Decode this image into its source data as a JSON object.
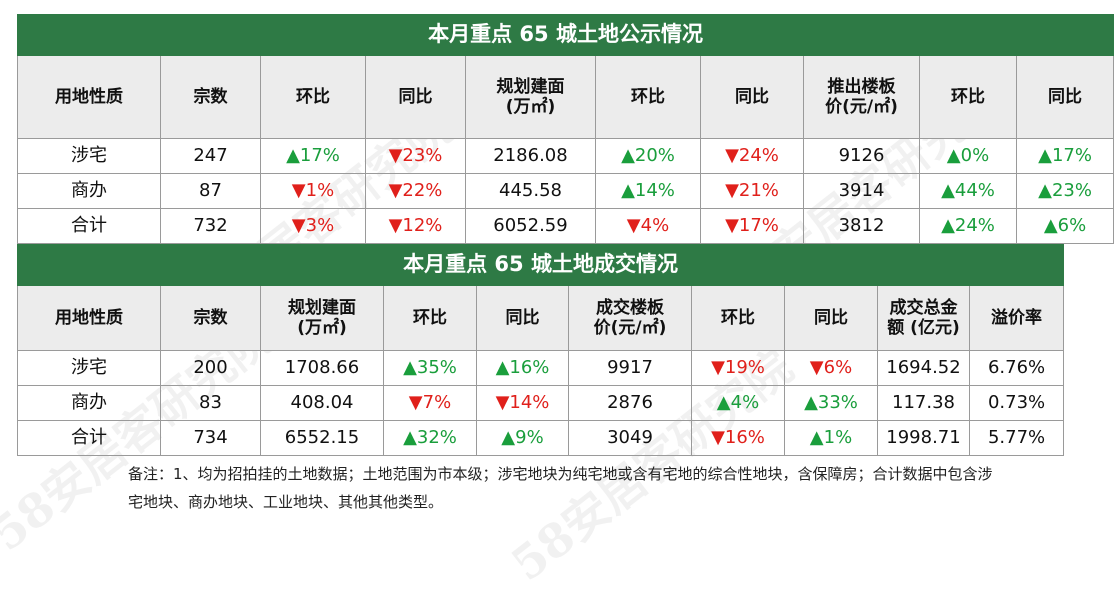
{
  "watermark": "58安居客研究院",
  "table1": {
    "title": "本月重点 65 城土地公示情况",
    "headers": [
      [
        "用地性质"
      ],
      [
        "宗数"
      ],
      [
        "环比"
      ],
      [
        "同比"
      ],
      [
        "规划建面",
        "(万㎡)"
      ],
      [
        "环比"
      ],
      [
        "同比"
      ],
      [
        "推出楼板",
        "价(元/㎡)"
      ],
      [
        "环比"
      ],
      [
        "同比"
      ]
    ],
    "rows": [
      {
        "type": "涉宅",
        "count": "247",
        "count_mom": "▲17%",
        "count_yoy": "▼23%",
        "area": "2186.08",
        "area_mom": "▲20%",
        "area_yoy": "▼24%",
        "price": "9126",
        "price_mom": "▲0%",
        "price_yoy": "▲17%"
      },
      {
        "type": "商办",
        "count": "87",
        "count_mom": "▼1%",
        "count_yoy": "▼22%",
        "area": "445.58",
        "area_mom": "▲14%",
        "area_yoy": "▼21%",
        "price": "3914",
        "price_mom": "▲44%",
        "price_yoy": "▲23%"
      },
      {
        "type": "合计",
        "count": "732",
        "count_mom": "▼3%",
        "count_yoy": "▼12%",
        "area": "6052.59",
        "area_mom": "▼4%",
        "area_yoy": "▼17%",
        "price": "3812",
        "price_mom": "▲24%",
        "price_yoy": "▲6%"
      }
    ]
  },
  "table2": {
    "title": "本月重点 65 城土地成交情况",
    "headers": [
      [
        "用地性质"
      ],
      [
        "宗数"
      ],
      [
        "规划建面",
        "(万㎡)"
      ],
      [
        "环比"
      ],
      [
        "同比"
      ],
      [
        "成交楼板",
        "价(元/㎡)"
      ],
      [
        "环比"
      ],
      [
        "同比"
      ],
      [
        "成交总金",
        "额 (亿元)"
      ],
      [
        "溢价率"
      ]
    ],
    "rows": [
      {
        "type": "涉宅",
        "count": "200",
        "area": "1708.66",
        "area_mom": "▲35%",
        "area_yoy": "▲16%",
        "price": "9917",
        "price_mom": "▼19%",
        "price_yoy": "▼6%",
        "amount": "1694.52",
        "premium": "6.76%"
      },
      {
        "type": "商办",
        "count": "83",
        "area": "408.04",
        "area_mom": "▼7%",
        "area_yoy": "▼14%",
        "price": "2876",
        "price_mom": "▲4%",
        "price_yoy": "▲33%",
        "amount": "117.38",
        "premium": "0.73%"
      },
      {
        "type": "合计",
        "count": "734",
        "area": "6552.15",
        "area_mom": "▲32%",
        "area_yoy": "▲9%",
        "price": "3049",
        "price_mom": "▼16%",
        "price_yoy": "▲1%",
        "amount": "1998.71",
        "premium": "5.77%"
      }
    ]
  },
  "note": "备注：1、均为招拍挂的土地数据；土地范围为市本级；涉宅地块为纯宅地或含有宅地的综合性地块，含保障房；合计数据中包含涉宅地块、商办地块、工业地块、其他其他类型。",
  "colors": {
    "title_bg": "#2e7a45",
    "header_bg": "#ececec",
    "up": "#1a9e3c",
    "down": "#e0201b"
  }
}
